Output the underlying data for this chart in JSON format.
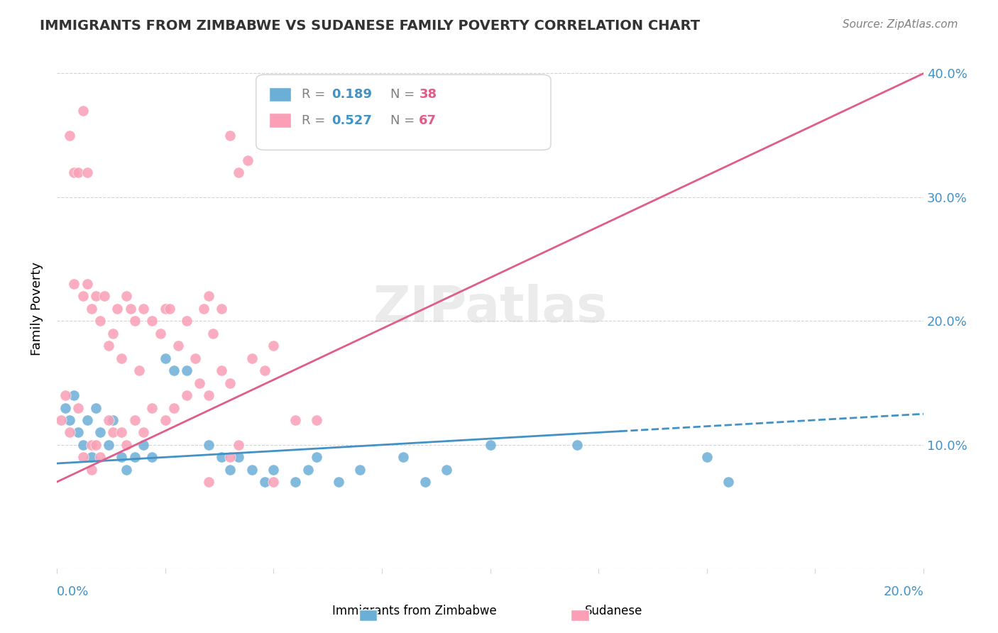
{
  "title": "IMMIGRANTS FROM ZIMBABWE VS SUDANESE FAMILY POVERTY CORRELATION CHART",
  "source": "Source: ZipAtlas.com",
  "ylabel": "Family Poverty",
  "y_ticks": [
    0.0,
    0.1,
    0.2,
    0.3,
    0.4
  ],
  "y_tick_labels": [
    "",
    "10.0%",
    "20.0%",
    "30.0%",
    "40.0%"
  ],
  "x_lim": [
    0.0,
    0.2
  ],
  "y_lim": [
    0.0,
    0.42
  ],
  "watermark": "ZIPatlas",
  "color_blue": "#6baed6",
  "color_pink": "#fa9fb5",
  "color_line_blue": "#4292c6",
  "color_line_pink": "#e05c8a",
  "zim_intercept": 0.085,
  "zim_slope": 0.2,
  "sud_intercept": 0.07,
  "sud_slope": 1.65,
  "zimbabwe_scatter": [
    [
      0.002,
      0.13
    ],
    [
      0.003,
      0.12
    ],
    [
      0.004,
      0.14
    ],
    [
      0.005,
      0.11
    ],
    [
      0.006,
      0.1
    ],
    [
      0.007,
      0.12
    ],
    [
      0.008,
      0.09
    ],
    [
      0.009,
      0.13
    ],
    [
      0.01,
      0.11
    ],
    [
      0.012,
      0.1
    ],
    [
      0.013,
      0.12
    ],
    [
      0.015,
      0.09
    ],
    [
      0.016,
      0.08
    ],
    [
      0.018,
      0.09
    ],
    [
      0.02,
      0.1
    ],
    [
      0.022,
      0.09
    ],
    [
      0.025,
      0.17
    ],
    [
      0.027,
      0.16
    ],
    [
      0.03,
      0.16
    ],
    [
      0.035,
      0.1
    ],
    [
      0.038,
      0.09
    ],
    [
      0.04,
      0.08
    ],
    [
      0.042,
      0.09
    ],
    [
      0.045,
      0.08
    ],
    [
      0.048,
      0.07
    ],
    [
      0.05,
      0.08
    ],
    [
      0.055,
      0.07
    ],
    [
      0.058,
      0.08
    ],
    [
      0.06,
      0.09
    ],
    [
      0.065,
      0.07
    ],
    [
      0.07,
      0.08
    ],
    [
      0.08,
      0.09
    ],
    [
      0.085,
      0.07
    ],
    [
      0.09,
      0.08
    ],
    [
      0.1,
      0.1
    ],
    [
      0.12,
      0.1
    ],
    [
      0.15,
      0.09
    ],
    [
      0.155,
      0.07
    ]
  ],
  "sudanese_scatter": [
    [
      0.001,
      0.12
    ],
    [
      0.002,
      0.14
    ],
    [
      0.003,
      0.11
    ],
    [
      0.004,
      0.23
    ],
    [
      0.005,
      0.13
    ],
    [
      0.006,
      0.22
    ],
    [
      0.007,
      0.23
    ],
    [
      0.008,
      0.21
    ],
    [
      0.009,
      0.22
    ],
    [
      0.01,
      0.2
    ],
    [
      0.011,
      0.22
    ],
    [
      0.012,
      0.18
    ],
    [
      0.013,
      0.19
    ],
    [
      0.014,
      0.21
    ],
    [
      0.015,
      0.17
    ],
    [
      0.016,
      0.22
    ],
    [
      0.017,
      0.21
    ],
    [
      0.018,
      0.2
    ],
    [
      0.019,
      0.16
    ],
    [
      0.02,
      0.21
    ],
    [
      0.022,
      0.2
    ],
    [
      0.024,
      0.19
    ],
    [
      0.025,
      0.21
    ],
    [
      0.026,
      0.21
    ],
    [
      0.028,
      0.18
    ],
    [
      0.03,
      0.2
    ],
    [
      0.032,
      0.17
    ],
    [
      0.034,
      0.21
    ],
    [
      0.035,
      0.22
    ],
    [
      0.036,
      0.19
    ],
    [
      0.038,
      0.21
    ],
    [
      0.04,
      0.35
    ],
    [
      0.042,
      0.32
    ],
    [
      0.044,
      0.33
    ],
    [
      0.003,
      0.35
    ],
    [
      0.004,
      0.32
    ],
    [
      0.005,
      0.32
    ],
    [
      0.006,
      0.09
    ],
    [
      0.008,
      0.1
    ],
    [
      0.009,
      0.1
    ],
    [
      0.01,
      0.09
    ],
    [
      0.012,
      0.12
    ],
    [
      0.013,
      0.11
    ],
    [
      0.015,
      0.11
    ],
    [
      0.016,
      0.1
    ],
    [
      0.018,
      0.12
    ],
    [
      0.02,
      0.11
    ],
    [
      0.022,
      0.13
    ],
    [
      0.025,
      0.12
    ],
    [
      0.027,
      0.13
    ],
    [
      0.03,
      0.14
    ],
    [
      0.033,
      0.15
    ],
    [
      0.035,
      0.14
    ],
    [
      0.038,
      0.16
    ],
    [
      0.04,
      0.15
    ],
    [
      0.045,
      0.17
    ],
    [
      0.048,
      0.16
    ],
    [
      0.05,
      0.18
    ],
    [
      0.006,
      0.37
    ],
    [
      0.007,
      0.32
    ],
    [
      0.008,
      0.08
    ],
    [
      0.05,
      0.07
    ],
    [
      0.055,
      0.12
    ],
    [
      0.06,
      0.12
    ],
    [
      0.035,
      0.07
    ],
    [
      0.04,
      0.09
    ],
    [
      0.042,
      0.1
    ]
  ]
}
